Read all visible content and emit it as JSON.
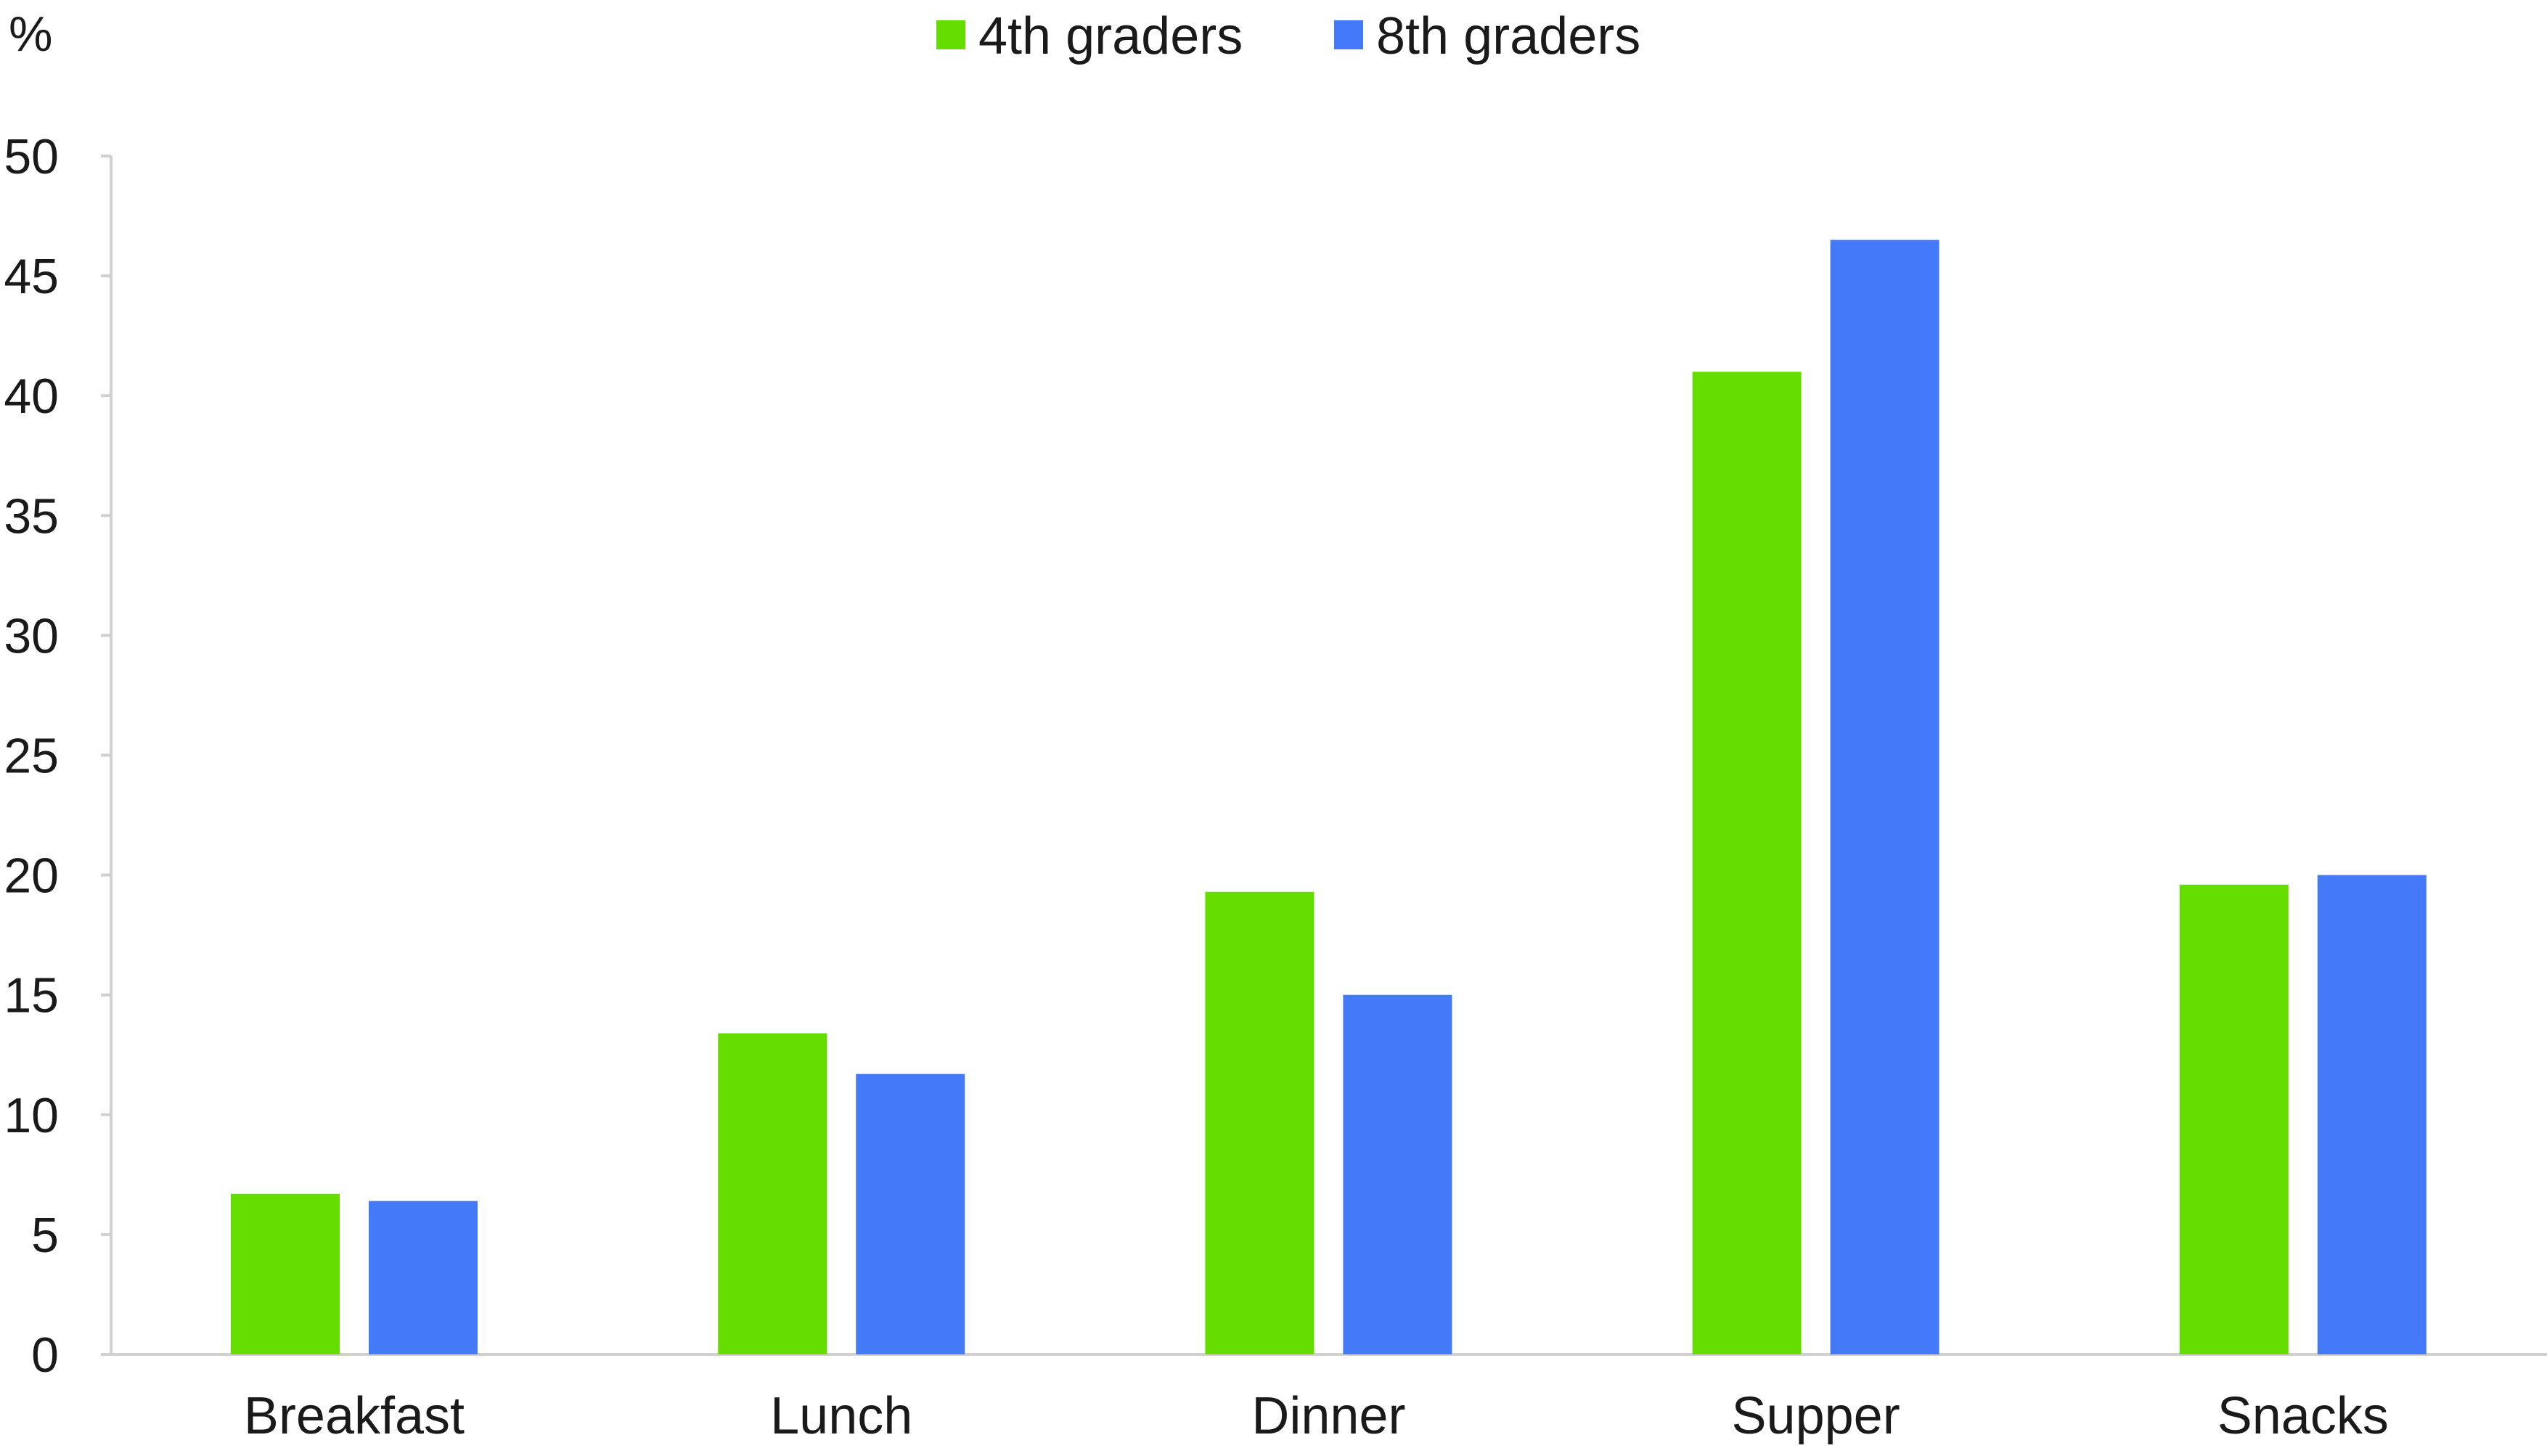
{
  "chart_data": {
    "type": "bar",
    "ylabel": "%",
    "xlabel": "",
    "title": "",
    "categories": [
      "Breakfast",
      "Lunch",
      "Dinner",
      "Supper",
      "Snacks"
    ],
    "series": [
      {
        "name": "4th graders",
        "color": "#66dd00",
        "values": [
          6.7,
          13.4,
          19.3,
          41.0,
          19.6
        ]
      },
      {
        "name": "8th graders",
        "color": "#4479f7",
        "values": [
          6.4,
          11.7,
          15.0,
          46.5,
          20.0
        ]
      }
    ],
    "ylim": [
      0,
      50
    ],
    "yticks": [
      "0",
      "5",
      "10",
      "15",
      "20",
      "25",
      "30",
      "35",
      "40",
      "45",
      "50"
    ],
    "grid": false,
    "legend_position": "top-center"
  }
}
